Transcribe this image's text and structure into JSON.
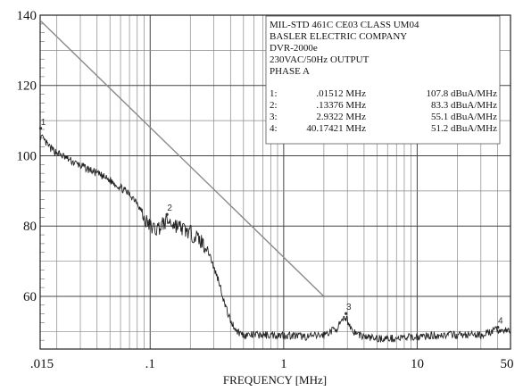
{
  "chart_data": {
    "type": "line",
    "xlabel": "FREQUENCY  [MHz]",
    "ylabel": "",
    "x_scale": "log",
    "xlim": [
      0.015,
      50
    ],
    "ylim": [
      45,
      140
    ],
    "grid": true,
    "x_tick_labels": [
      {
        "value": 0.015,
        "label": ".015"
      },
      {
        "value": 0.1,
        "label": ".1"
      },
      {
        "value": 1,
        "label": "1"
      },
      {
        "value": 10,
        "label": "10"
      },
      {
        "value": 50,
        "label": "50"
      }
    ],
    "y_tick_labels": [
      {
        "value": 140,
        "label": "140"
      },
      {
        "value": 120,
        "label": "120"
      },
      {
        "value": 100,
        "label": "100"
      },
      {
        "value": 80,
        "label": "80"
      },
      {
        "value": 60,
        "label": "60"
      }
    ],
    "limit_line": {
      "x": [
        0.015,
        2.0
      ],
      "y": [
        138.5,
        60
      ]
    },
    "series": [
      {
        "x": [
          0.01512,
          0.018,
          0.022,
          0.027,
          0.033,
          0.04,
          0.05,
          0.06,
          0.07,
          0.08,
          0.09,
          0.1,
          0.11,
          0.12,
          0.13376,
          0.15,
          0.17,
          0.2,
          0.22,
          0.25,
          0.28,
          0.3,
          0.33,
          0.36,
          0.4,
          0.45,
          0.5,
          0.6,
          0.8,
          1.0,
          1.5,
          2.0,
          2.5,
          2.9322,
          3.3,
          4.0,
          5.0,
          7.0,
          10.0,
          15.0,
          20.0,
          30.0,
          40.17421,
          50.0
        ],
        "y": [
          105.5,
          102,
          100,
          98,
          96.5,
          95,
          93,
          91,
          89,
          87,
          82,
          80,
          79,
          80,
          81.5,
          80.5,
          79.5,
          78,
          77,
          75,
          72,
          68,
          64,
          58,
          53,
          50,
          49,
          49,
          49,
          49,
          48.5,
          49,
          51,
          54,
          50,
          48.5,
          48,
          48,
          48.5,
          49,
          49,
          49,
          50.5,
          50
        ]
      }
    ],
    "markers": [
      {
        "id": "1",
        "x": 0.01512,
        "y": 107.8
      },
      {
        "id": "2",
        "x": 0.13376,
        "y": 83.3
      },
      {
        "id": "3",
        "x": 2.9322,
        "y": 55.1
      },
      {
        "id": "4",
        "x": 40.17421,
        "y": 51.2
      }
    ]
  },
  "info_box": {
    "header_lines": [
      "MIL-STD 461C CE03 CLASS UM04",
      "BASLER ELECTRIC COMPANY",
      "DVR-2000e",
      "230VAC/50Hz OUTPUT",
      "PHASE A"
    ],
    "marker_rows": [
      {
        "index": "1:",
        "freq": ".01512 MHz",
        "level": "107.8 dBuA/MHz"
      },
      {
        "index": "2:",
        "freq": ".13376 MHz",
        "level": "83.3 dBuA/MHz"
      },
      {
        "index": "3:",
        "freq": "2.9322 MHz",
        "level": "55.1 dBuA/MHz"
      },
      {
        "index": "4:",
        "freq": "40.17421 MHz",
        "level": "51.2 dBuA/MHz"
      }
    ]
  }
}
